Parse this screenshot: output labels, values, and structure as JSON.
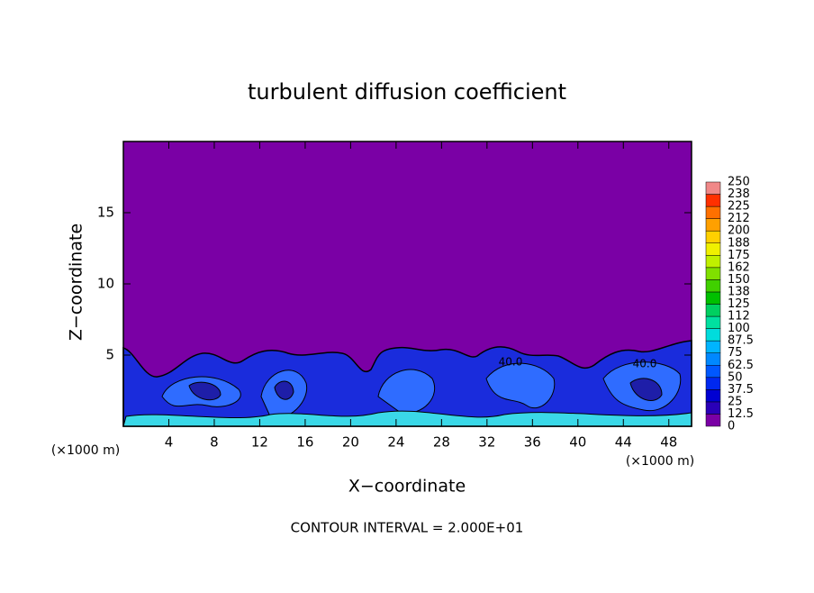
{
  "chart_data": {
    "type": "contour",
    "title": "turbulent diffusion coefficient",
    "x_label": "X−coordinate",
    "y_label": "Z−coordinate",
    "x_unit_left": "(×1000 m)",
    "x_unit_right": "(×1000 m)",
    "footer": "CONTOUR INTERVAL = 2.000E+01",
    "contour_labels": [
      "40.0",
      "40.0"
    ],
    "xlim": [
      0,
      50
    ],
    "ylim": [
      0,
      20
    ],
    "xticks": [
      4,
      8,
      12,
      16,
      20,
      24,
      28,
      32,
      36,
      40,
      44,
      48
    ],
    "yticks": [
      5,
      10,
      15
    ],
    "colorbar": {
      "levels": [
        0,
        12.5,
        25,
        37.5,
        50,
        62.5,
        75,
        87.5,
        100,
        {
          "value": 112.5,
          "label": "112"
        },
        125,
        {
          "value": 137.5,
          "label": "138"
        },
        150,
        {
          "value": 162.5,
          "label": "162"
        },
        175,
        {
          "value": 187.5,
          "label": "188"
        },
        200,
        {
          "value": 212.5,
          "label": "212"
        },
        225,
        {
          "value": 237.5,
          "label": "238"
        },
        250
      ],
      "colors": [
        "#7a00a5",
        "#2a00b8",
        "#0000d2",
        "#0028f0",
        "#0058ff",
        "#0088ff",
        "#00b4ff",
        "#00dcdc",
        "#00e0a0",
        "#00d060",
        "#00c000",
        "#40d000",
        "#80e000",
        "#c0f000",
        "#f0f000",
        "#ffd000",
        "#ffa000",
        "#ff7000",
        "#ff3000",
        "#f08888"
      ]
    }
  }
}
